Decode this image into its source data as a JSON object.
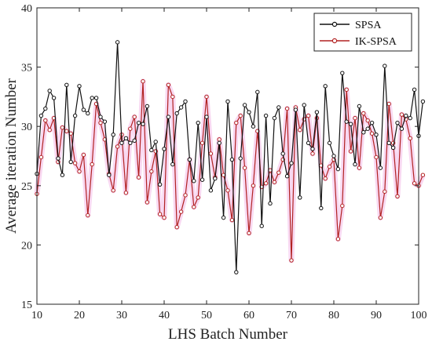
{
  "chart_data": {
    "type": "line",
    "xlabel": "LHS Batch Number",
    "ylabel": "Average iteration Number",
    "xlim": [
      10,
      100
    ],
    "ylim": [
      15,
      40
    ],
    "xticks": [
      10,
      20,
      30,
      40,
      50,
      60,
      70,
      80,
      90,
      100
    ],
    "yticks": [
      15,
      20,
      25,
      30,
      35,
      40
    ],
    "grid": false,
    "legend_position": "top-right",
    "colors": {
      "SPSA": "#111111",
      "IK-SPSA": "#b22222",
      "highlight": "#f2b8e6"
    },
    "x_start": 10,
    "series": [
      {
        "name": "SPSA",
        "values": [
          26.0,
          30.9,
          31.5,
          33.0,
          32.4,
          27.3,
          25.9,
          33.5,
          27.0,
          30.9,
          33.4,
          31.4,
          31.1,
          32.4,
          32.4,
          30.8,
          30.4,
          25.9,
          29.3,
          37.1,
          28.6,
          29.0,
          28.6,
          28.8,
          30.3,
          30.2,
          31.7,
          28.0,
          28.7,
          25.1,
          28.1,
          30.8,
          26.8,
          31.1,
          31.6,
          32.1,
          27.2,
          25.4,
          30.3,
          25.5,
          30.8,
          24.6,
          25.6,
          28.6,
          22.3,
          32.1,
          27.2,
          17.7,
          27.3,
          31.8,
          31.2,
          30.0,
          32.9,
          21.6,
          30.9,
          23.5,
          30.7,
          31.6,
          27.7,
          25.8,
          26.9,
          31.4,
          24.0,
          31.8,
          28.6,
          28.1,
          31.2,
          23.1,
          33.4,
          28.6,
          27.5,
          26.4,
          34.5,
          30.4,
          30.2,
          26.8,
          31.7,
          29.5,
          29.8,
          30.3,
          29.3,
          26.5,
          35.1,
          28.6,
          28.2,
          30.3,
          29.8,
          30.9,
          30.7,
          33.1,
          29.2,
          32.1
        ]
      },
      {
        "name": "IK-SPSA",
        "values": [
          24.3,
          27.4,
          30.5,
          29.7,
          30.7,
          27.0,
          29.9,
          29.6,
          29.4,
          26.9,
          26.2,
          27.6,
          22.5,
          26.8,
          31.9,
          30.3,
          28.9,
          26.0,
          24.6,
          28.3,
          29.3,
          24.4,
          29.8,
          30.8,
          25.7,
          33.8,
          23.6,
          26.2,
          27.9,
          22.6,
          22.3,
          33.5,
          32.5,
          21.5,
          22.8,
          24.2,
          27.2,
          23.2,
          24.0,
          28.6,
          32.5,
          27.7,
          25.7,
          28.9,
          25.9,
          24.6,
          22.1,
          30.3,
          30.9,
          26.5,
          21.0,
          25.0,
          29.6,
          24.9,
          25.2,
          26.3,
          25.3,
          26.1,
          27.2,
          31.5,
          18.7,
          31.6,
          29.7,
          30.6,
          30.9,
          27.7,
          30.7,
          26.7,
          25.6,
          26.6,
          27.2,
          20.5,
          23.3,
          33.1,
          27.9,
          30.7,
          26.5,
          31.1,
          30.5,
          29.4,
          27.4,
          22.3,
          24.5,
          31.9,
          28.6,
          24.1,
          31.0,
          30.6,
          29.0,
          25.2,
          25.0,
          25.9
        ]
      }
    ]
  },
  "legend": [
    {
      "label": "SPSA"
    },
    {
      "label": "IK-SPSA"
    }
  ]
}
